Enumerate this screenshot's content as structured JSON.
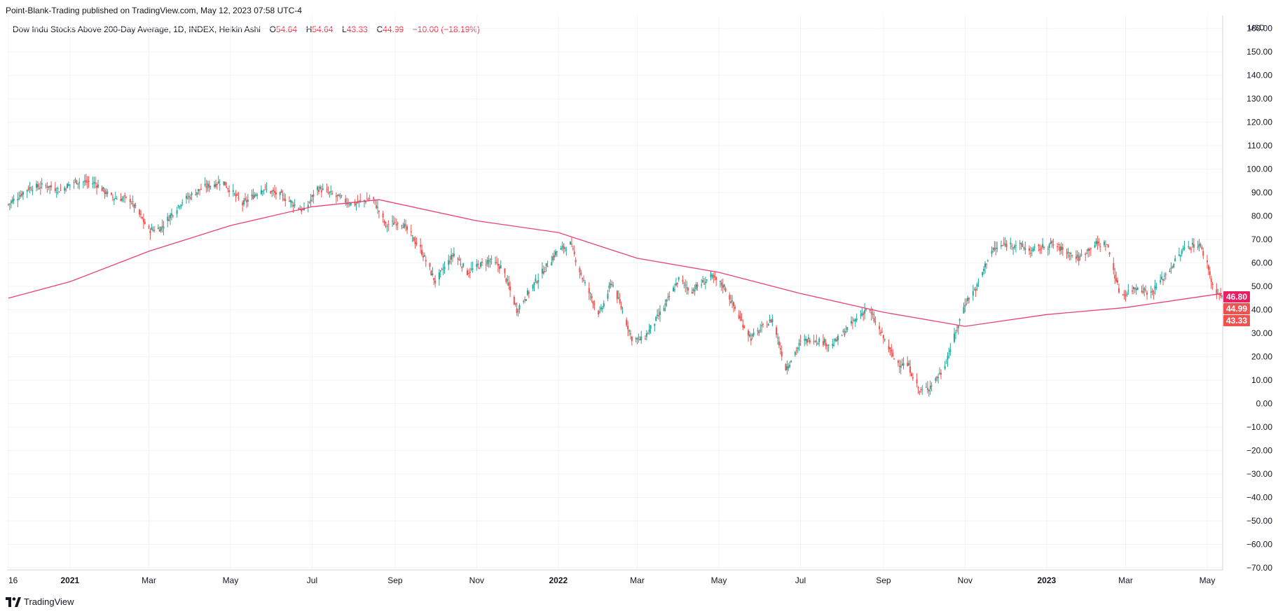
{
  "header": {
    "text": "Point-Blank-Trading published on TradingView.com, May 12, 2023 07:58 UTC-4"
  },
  "legend": {
    "symbol": "Dow Indu Stocks Above 200-Day Average, 1D, INDEX, Heikin Ashi",
    "o_label": "O",
    "o_value": "54.64",
    "h_label": "H",
    "h_value": "54.64",
    "l_label": "L",
    "l_value": "43.33",
    "c_label": "C",
    "c_value": "44.99",
    "change": "−10.00 (−18.19%)"
  },
  "axis": {
    "currency": "USD"
  },
  "footer": {
    "brand": "TradingView"
  },
  "colors": {
    "up": "#26a69a",
    "down": "#ef5350",
    "ma": "#ec407a",
    "grid": "#f0f3fa",
    "axis_text": "#131722"
  },
  "price_labels": [
    {
      "value": 46.8,
      "text": "46.80",
      "color": "#e91e63"
    },
    {
      "value": 44.99,
      "text": "44.99",
      "color": "#ef5350"
    },
    {
      "value": 43.33,
      "text": "43.33",
      "color": "#ef5350"
    }
  ],
  "chart_data": {
    "type": "candlestick",
    "title": "Dow Indu Stocks Above 200-Day Average",
    "ylim": [
      -70,
      160
    ],
    "y_ticks": [
      160,
      150,
      140,
      130,
      120,
      110,
      100,
      90,
      80,
      70,
      60,
      50,
      40,
      30,
      20,
      10,
      0,
      -10,
      -20,
      -30,
      -40,
      -50,
      -60,
      -70
    ],
    "y_tick_labels": [
      "160.00",
      "150.00",
      "140.00",
      "130.00",
      "120.00",
      "110.00",
      "100.00",
      "90.00",
      "80.00",
      "70.00",
      "60.00",
      "50.00",
      "40.00",
      "30.00",
      "20.00",
      "10.00",
      "0.00",
      "−10.00",
      "−20.00",
      "−30.00",
      "−40.00",
      "−50.00",
      "−60.00",
      "−70.00"
    ],
    "x_range": [
      "2020-11-16",
      "2023-05-12"
    ],
    "x_ticks": [
      {
        "date": "2020-11-16",
        "label": "16",
        "bold": false
      },
      {
        "date": "2021-01-01",
        "label": "2021",
        "bold": true
      },
      {
        "date": "2021-03-01",
        "label": "Mar",
        "bold": false
      },
      {
        "date": "2021-05-01",
        "label": "May",
        "bold": false
      },
      {
        "date": "2021-07-01",
        "label": "Jul",
        "bold": false
      },
      {
        "date": "2021-09-01",
        "label": "Sep",
        "bold": false
      },
      {
        "date": "2021-11-01",
        "label": "Nov",
        "bold": false
      },
      {
        "date": "2022-01-01",
        "label": "2022",
        "bold": true
      },
      {
        "date": "2022-03-01",
        "label": "Mar",
        "bold": false
      },
      {
        "date": "2022-05-01",
        "label": "May",
        "bold": false
      },
      {
        "date": "2022-07-01",
        "label": "Jul",
        "bold": false
      },
      {
        "date": "2022-09-01",
        "label": "Sep",
        "bold": false
      },
      {
        "date": "2022-11-01",
        "label": "Nov",
        "bold": false
      },
      {
        "date": "2023-01-01",
        "label": "2023",
        "bold": true
      },
      {
        "date": "2023-03-01",
        "label": "Mar",
        "bold": false
      },
      {
        "date": "2023-05-01",
        "label": "May",
        "bold": false
      }
    ],
    "price_path": [
      [
        "2020-11-16",
        85
      ],
      [
        "2020-12-01",
        92
      ],
      [
        "2020-12-15",
        93
      ],
      [
        "2020-12-25",
        91
      ],
      [
        "2021-01-05",
        95
      ],
      [
        "2021-01-20",
        94
      ],
      [
        "2021-02-01",
        88
      ],
      [
        "2021-02-15",
        87
      ],
      [
        "2021-03-01",
        74
      ],
      [
        "2021-03-10",
        75
      ],
      [
        "2021-03-25",
        86
      ],
      [
        "2021-04-10",
        92
      ],
      [
        "2021-04-25",
        95
      ],
      [
        "2021-05-10",
        85
      ],
      [
        "2021-05-25",
        92
      ],
      [
        "2021-06-10",
        88
      ],
      [
        "2021-06-25",
        82
      ],
      [
        "2021-07-05",
        92
      ],
      [
        "2021-07-20",
        88
      ],
      [
        "2021-08-01",
        85
      ],
      [
        "2021-08-15",
        88
      ],
      [
        "2021-08-25",
        76
      ],
      [
        "2021-09-05",
        78
      ],
      [
        "2021-09-20",
        66
      ],
      [
        "2021-10-01",
        52
      ],
      [
        "2021-10-15",
        64
      ],
      [
        "2021-10-25",
        56
      ],
      [
        "2021-11-10",
        61
      ],
      [
        "2021-11-20",
        58
      ],
      [
        "2021-12-01",
        40
      ],
      [
        "2021-12-15",
        52
      ],
      [
        "2021-12-31",
        65
      ],
      [
        "2022-01-10",
        68
      ],
      [
        "2022-01-20",
        52
      ],
      [
        "2022-02-01",
        38
      ],
      [
        "2022-02-10",
        52
      ],
      [
        "2022-02-25",
        28
      ],
      [
        "2022-03-05",
        27
      ],
      [
        "2022-03-20",
        40
      ],
      [
        "2022-04-01",
        53
      ],
      [
        "2022-04-10",
        48
      ],
      [
        "2022-04-25",
        54
      ],
      [
        "2022-05-05",
        50
      ],
      [
        "2022-05-15",
        38
      ],
      [
        "2022-05-25",
        28
      ],
      [
        "2022-06-10",
        36
      ],
      [
        "2022-06-20",
        15
      ],
      [
        "2022-07-01",
        26
      ],
      [
        "2022-07-10",
        28
      ],
      [
        "2022-07-25",
        25
      ],
      [
        "2022-08-10",
        35
      ],
      [
        "2022-08-20",
        41
      ],
      [
        "2022-09-01",
        28
      ],
      [
        "2022-09-10",
        18
      ],
      [
        "2022-09-20",
        16
      ],
      [
        "2022-09-28",
        5
      ],
      [
        "2022-10-05",
        7
      ],
      [
        "2022-10-15",
        14
      ],
      [
        "2022-10-25",
        30
      ],
      [
        "2022-11-01",
        43
      ],
      [
        "2022-11-10",
        50
      ],
      [
        "2022-11-20",
        65
      ],
      [
        "2022-12-01",
        68
      ],
      [
        "2022-12-10",
        68
      ],
      [
        "2022-12-20",
        65
      ],
      [
        "2023-01-05",
        68
      ],
      [
        "2023-01-15",
        65
      ],
      [
        "2023-01-25",
        62
      ],
      [
        "2023-02-05",
        68
      ],
      [
        "2023-02-15",
        68
      ],
      [
        "2023-02-25",
        46
      ],
      [
        "2023-03-10",
        50
      ],
      [
        "2023-03-20",
        47
      ],
      [
        "2023-04-01",
        56
      ],
      [
        "2023-04-15",
        67
      ],
      [
        "2023-04-25",
        68
      ],
      [
        "2023-05-01",
        60
      ],
      [
        "2023-05-05",
        50
      ],
      [
        "2023-05-12",
        45
      ]
    ],
    "moving_average": [
      [
        "2020-11-16",
        45
      ],
      [
        "2021-01-01",
        52
      ],
      [
        "2021-03-01",
        65
      ],
      [
        "2021-05-01",
        76
      ],
      [
        "2021-07-01",
        84
      ],
      [
        "2021-08-20",
        87
      ],
      [
        "2021-11-01",
        78
      ],
      [
        "2022-01-01",
        73
      ],
      [
        "2022-03-01",
        62
      ],
      [
        "2022-05-01",
        56
      ],
      [
        "2022-07-01",
        47
      ],
      [
        "2022-09-01",
        39
      ],
      [
        "2022-11-01",
        33
      ],
      [
        "2023-01-01",
        38
      ],
      [
        "2023-03-01",
        41
      ],
      [
        "2023-05-12",
        47
      ]
    ]
  }
}
